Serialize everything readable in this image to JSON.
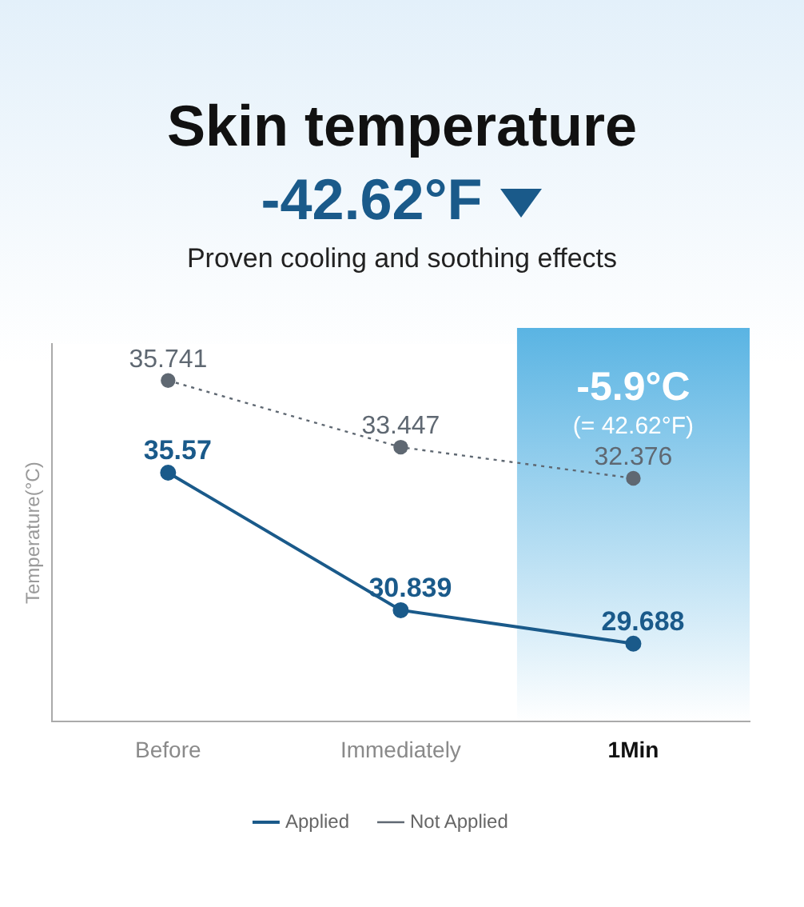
{
  "chart_data": {
    "type": "line",
    "title": "Skin temperature",
    "subtitle": "-42.62°F",
    "ylabel": "Temperature(°C)",
    "categories": [
      "Before",
      "Immediately",
      "1Min"
    ],
    "series": [
      {
        "name": "Applied",
        "color": "#1a5a8a",
        "values": [
          35.57,
          30.839,
          29.688
        ],
        "line_style": "solid",
        "axis": "y2"
      },
      {
        "name": "Not Applied",
        "color": "#5f6872",
        "values": [
          35.741,
          33.447,
          32.376
        ],
        "line_style": "dotted"
      }
    ],
    "ylim": [
      24,
      37
    ],
    "y2lim": [
      27,
      40
    ],
    "tick_labels": "x",
    "grid": false,
    "legend": "bottom",
    "marker": "circle",
    "data_labels": true,
    "bands": [
      {
        "axis": "x",
        "from": "1Min",
        "to": "1Min",
        "color": "#5ab4e3"
      }
    ],
    "annotations": [
      "Proven cooling and soothing effects",
      "-5.9°C",
      "(= 42.62°F)"
    ]
  }
}
